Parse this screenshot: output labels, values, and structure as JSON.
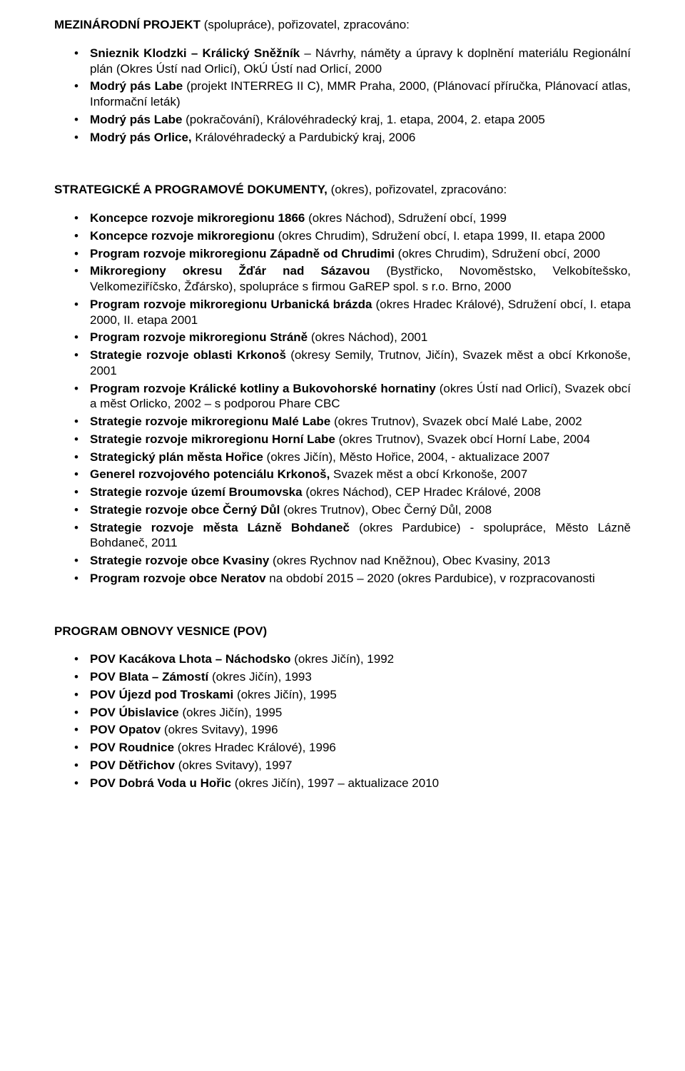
{
  "section1": {
    "head_bold": "MEZINÁRODNÍ PROJEKT ",
    "head_rest": "(spolupráce), pořizovatel, zpracováno:",
    "items": [
      {
        "b": "Snieznik Klodzki – Králický Sněžník",
        "t": " – Návrhy, náměty a úpravy k doplnění materiálu Regionální plán (Okres Ústí nad Orlicí), OkÚ Ústí nad Orlicí, 2000"
      },
      {
        "b": "Modrý pás Labe",
        "t": " (projekt INTERREG II C), MMR Praha, 2000, (Plánovací příručka, Plánovací atlas, Informační leták)"
      },
      {
        "b": "Modrý pás Labe",
        "t": " (pokračování), Královéhradecký kraj, 1. etapa, 2004, 2. etapa 2005"
      },
      {
        "b": "Modrý pás Orlice,",
        "t": " Královéhradecký a Pardubický kraj, 2006"
      }
    ]
  },
  "section2": {
    "head_bold": "STRATEGICKÉ A PROGRAMOVÉ DOKUMENTY,",
    "head_rest": " (okres), pořizovatel, zpracováno:",
    "items": [
      {
        "b": "Koncepce rozvoje mikroregionu 1866",
        "t": " (okres Náchod), Sdružení obcí, 1999"
      },
      {
        "b": "Koncepce rozvoje mikroregionu",
        "t": " (okres Chrudim), Sdružení obcí, I. etapa 1999, II. etapa  2000"
      },
      {
        "b": "Program rozvoje mikroregionu Západně od Chrudimi",
        "t": " (okres Chrudim), Sdružení obcí, 2000"
      },
      {
        "b": "Mikroregiony okresu Žďár nad Sázavou",
        "t": " (Bystřicko, Novoměstsko, Velkobítešsko, Velkomeziříčsko, Žďársko), spolupráce s firmou GaREP spol. s r.o. Brno, 2000"
      },
      {
        "b": "Program rozvoje mikroregionu Urbanická brázda",
        "t": " (okres Hradec Králové), Sdružení obcí, I. etapa 2000, II. etapa 2001"
      },
      {
        "b": "Program rozvoje mikroregionu Stráně",
        "t": " (okres Náchod), 2001"
      },
      {
        "b": "Strategie rozvoje oblasti Krkonoš",
        "t": " (okresy Semily, Trutnov, Jičín), Svazek měst a obcí Krkonoše, 2001"
      },
      {
        "b": "Program rozvoje Králické kotliny a Bukovohorské hornatiny",
        "t": " (okres Ústí nad Orlicí), Svazek obcí a měst Orlicko, 2002 – s podporou Phare CBC"
      },
      {
        "b": "Strategie rozvoje mikroregionu Malé Labe",
        "t": " (okres Trutnov), Svazek obcí Malé Labe, 2002"
      },
      {
        "b": "Strategie rozvoje mikroregionu Horní Labe",
        "t": " (okres Trutnov), Svazek obcí Horní Labe, 2004"
      },
      {
        "b": "Strategický plán města Hořice",
        "t": " (okres Jičín), Město Hořice, 2004, - aktualizace 2007"
      },
      {
        "b": "Generel rozvojového potenciálu Krkonoš,",
        "t": " Svazek měst a obcí Krkonoše, 2007"
      },
      {
        "b": "Strategie rozvoje území Broumovska",
        "t": " (okres Náchod), CEP Hradec Králové, 2008"
      },
      {
        "b": "Strategie rozvoje obce Černý Důl",
        "t": " (okres Trutnov), Obec Černý Důl, 2008"
      },
      {
        "b": "Strategie rozvoje města Lázně Bohdaneč",
        "t": " (okres Pardubice) - spolupráce, Město Lázně Bohdaneč, 2011"
      },
      {
        "b": "Strategie rozvoje obce Kvasiny",
        "t": " (okres Rychnov nad Kněžnou), Obec Kvasiny, 2013"
      },
      {
        "b": "Program rozvoje obce Neratov",
        "t": " na období 2015 – 2020 (okres Pardubice), v rozpracovanosti"
      }
    ]
  },
  "section3": {
    "head_bold": "PROGRAM OBNOVY VESNICE (POV)",
    "head_rest": "",
    "items": [
      {
        "b": "POV Kacákova Lhota – Náchodsko",
        "t": " (okres Jičín), 1992"
      },
      {
        "b": "POV Blata – Zámostí",
        "t": " (okres Jičín), 1993"
      },
      {
        "b": "POV Újezd pod Troskami",
        "t": " (okres Jičín), 1995"
      },
      {
        "b": "POV Úbislavice",
        "t": " (okres Jičín), 1995"
      },
      {
        "b": "POV Opatov",
        "t": " (okres Svitavy), 1996"
      },
      {
        "b": "POV Roudnice",
        "t": " (okres Hradec Králové), 1996"
      },
      {
        "b": "POV Dětřichov",
        "t": " (okres Svitavy), 1997"
      },
      {
        "b": "POV Dobrá Voda u Hořic",
        "t": " (okres Jičín), 1997 – aktualizace 2010"
      }
    ]
  }
}
